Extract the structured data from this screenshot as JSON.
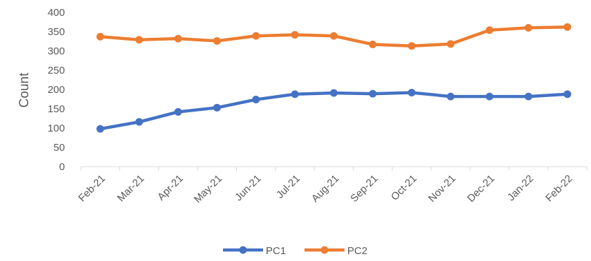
{
  "chart_data": {
    "type": "line",
    "title": "",
    "xlabel": "",
    "ylabel": "Count",
    "ylim": [
      0,
      400
    ],
    "yticks": [
      0,
      50,
      100,
      150,
      200,
      250,
      300,
      350,
      400
    ],
    "grid": false,
    "legend_position": "bottom",
    "categories": [
      "Feb-21",
      "Mar-21",
      "Apr-21",
      "May-21",
      "Jun-21",
      "Jul-21",
      "Aug-21",
      "Sep-21",
      "Oct-21",
      "Nov-21",
      "Dec-21",
      "Jan-22",
      "Feb-22"
    ],
    "series": [
      {
        "name": "PC1",
        "color": "#4472C4",
        "values": [
          98,
          116,
          142,
          153,
          174,
          188,
          191,
          189,
          192,
          182,
          182,
          182,
          188
        ]
      },
      {
        "name": "PC2",
        "color": "#ED7D31",
        "values": [
          337,
          329,
          332,
          326,
          339,
          342,
          339,
          317,
          313,
          318,
          354,
          360,
          362
        ]
      }
    ]
  }
}
